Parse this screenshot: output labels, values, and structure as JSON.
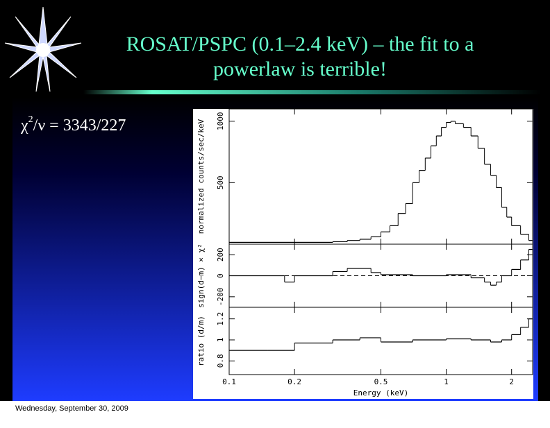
{
  "slide": {
    "title": "ROSAT/PSPC (0.1–2.4 keV) – the fit to a powerlaw is terrible!",
    "bullet": {
      "symbol": "χ",
      "superscript": "2",
      "rest": "/ν = 3343/227"
    },
    "footer": "Wednesday, September 30, 2009"
  },
  "chart_data": [
    {
      "type": "step",
      "ylabel": "normalized counts/sec/keV",
      "x": [
        0.1,
        0.2,
        0.3,
        0.35,
        0.4,
        0.45,
        0.5,
        0.55,
        0.6,
        0.65,
        0.7,
        0.75,
        0.8,
        0.85,
        0.9,
        0.95,
        1.0,
        1.05,
        1.1,
        1.2,
        1.3,
        1.4,
        1.5,
        1.6,
        1.7,
        1.8,
        1.9,
        2.0,
        2.2,
        2.4
      ],
      "values": [
        15,
        15,
        20,
        30,
        40,
        60,
        100,
        150,
        250,
        330,
        500,
        600,
        700,
        800,
        880,
        950,
        990,
        1000,
        980,
        950,
        880,
        780,
        650,
        560,
        460,
        300,
        220,
        150,
        80,
        30
      ],
      "xlim": [
        0.1,
        2.5
      ],
      "xscale": "log",
      "ylim": [
        0,
        1100
      ],
      "yticks": [
        500,
        1000
      ],
      "color": "#000000"
    },
    {
      "type": "step",
      "ylabel": "sign(d−m) × χ²",
      "x": [
        0.1,
        0.18,
        0.2,
        0.3,
        0.35,
        0.45,
        0.5,
        0.7,
        1.0,
        1.3,
        1.5,
        1.6,
        1.7,
        1.8,
        2.0,
        2.2,
        2.4
      ],
      "values": [
        0,
        -60,
        0,
        40,
        70,
        30,
        10,
        0,
        10,
        -20,
        -60,
        -90,
        -60,
        0,
        60,
        150,
        250
      ],
      "xlim": [
        0.1,
        2.5
      ],
      "xscale": "log",
      "ylim": [
        -300,
        300
      ],
      "yticks": [
        -200,
        0,
        200
      ],
      "color": "#000000"
    },
    {
      "type": "step",
      "ylabel": "ratio (d/m)",
      "xlabel": "Energy (keV)",
      "x": [
        0.1,
        0.15,
        0.2,
        0.3,
        0.4,
        0.5,
        0.7,
        1.0,
        1.3,
        1.6,
        1.8,
        2.0,
        2.2,
        2.4
      ],
      "values": [
        0.9,
        0.9,
        0.97,
        1.0,
        1.02,
        0.98,
        1.0,
        1.01,
        1.0,
        0.98,
        1.0,
        1.05,
        1.12,
        1.2
      ],
      "xlim": [
        0.1,
        2.5
      ],
      "xscale": "log",
      "ylim": [
        0.67,
        1.31
      ],
      "yticks": [
        0.8,
        1,
        1.2
      ],
      "xticks": [
        0.1,
        0.2,
        0.5,
        1,
        2
      ],
      "color": "#000000"
    }
  ]
}
